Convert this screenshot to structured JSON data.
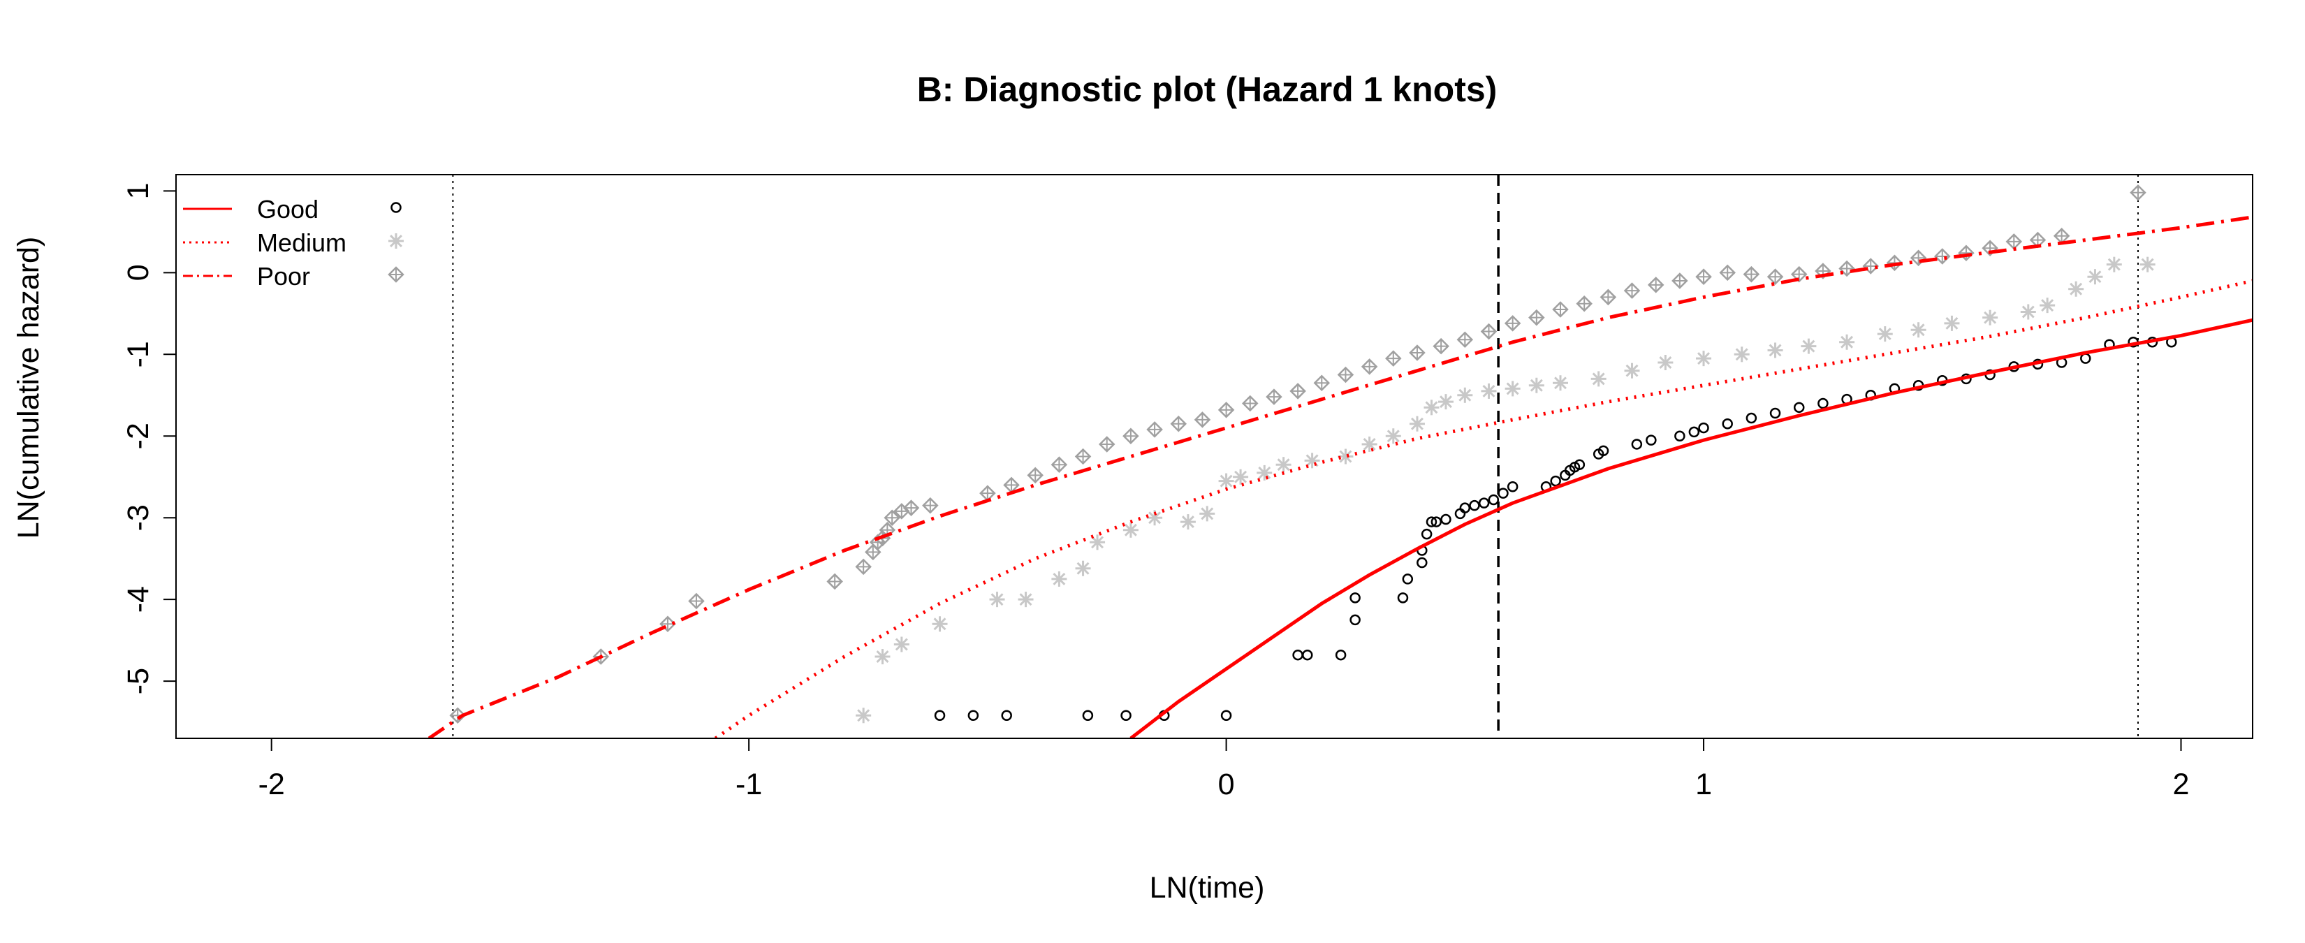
{
  "chart_data": {
    "type": "scatter",
    "title": "B: Diagnostic plot (Hazard 1 knots)",
    "xlabel": "LN(time)",
    "ylabel": "LN(cumulative hazard)",
    "xlim": [
      -2.2,
      2.15
    ],
    "ylim": [
      -5.7,
      1.2
    ],
    "x_ticks": [
      -2,
      -1,
      0,
      1,
      2
    ],
    "y_ticks": [
      -5,
      -4,
      -3,
      -2,
      -1,
      0,
      1
    ],
    "x_tick_labels": [
      "-2",
      "-1",
      "0",
      "1",
      "2"
    ],
    "y_tick_labels": [
      "-5",
      "-4",
      "-3",
      "-2",
      "-1",
      "0",
      "1"
    ],
    "grid": false,
    "legend_position": "top-left",
    "colors": {
      "curve": "#ff0000",
      "good_points": "#000000",
      "medium_points": "#c8c8c8",
      "poor_points": "#a0a0a0",
      "vline": "#000000"
    },
    "reference_lines": [
      {
        "x": -1.62,
        "style": "dotted"
      },
      {
        "x": 0.57,
        "style": "dashed"
      },
      {
        "x": 1.91,
        "style": "dotted"
      }
    ],
    "legend": [
      {
        "label": "Good",
        "line_style": "solid",
        "marker": "circle"
      },
      {
        "label": "Medium",
        "line_style": "dotted",
        "marker": "asterisk"
      },
      {
        "label": "Poor",
        "line_style": "dashdot",
        "marker": "diamond-plus"
      }
    ],
    "series": [
      {
        "name": "Good",
        "marker": "circle",
        "fitted_line": {
          "style": "solid",
          "x": [
            -0.2,
            -0.1,
            0.0,
            0.1,
            0.2,
            0.3,
            0.4,
            0.5,
            0.6,
            0.8,
            1.0,
            1.2,
            1.4,
            1.6,
            1.8,
            2.0,
            2.15
          ],
          "y": [
            -5.7,
            -5.25,
            -4.85,
            -4.45,
            -4.05,
            -3.7,
            -3.38,
            -3.08,
            -2.82,
            -2.4,
            -2.05,
            -1.75,
            -1.47,
            -1.22,
            -0.98,
            -0.77,
            -0.58
          ]
        },
        "points": {
          "x": [
            -0.6,
            -0.53,
            -0.46,
            -0.29,
            -0.21,
            -0.13,
            0.0,
            0.15,
            0.17,
            0.24,
            0.27,
            0.27,
            0.37,
            0.38,
            0.41,
            0.41,
            0.42,
            0.43,
            0.44,
            0.46,
            0.49,
            0.5,
            0.52,
            0.54,
            0.56,
            0.58,
            0.6,
            0.67,
            0.69,
            0.71,
            0.72,
            0.73,
            0.74,
            0.78,
            0.79,
            0.86,
            0.89,
            0.95,
            0.98,
            1.0,
            1.05,
            1.1,
            1.15,
            1.2,
            1.25,
            1.3,
            1.35,
            1.4,
            1.45,
            1.5,
            1.55,
            1.6,
            1.65,
            1.7,
            1.75,
            1.8,
            1.85,
            1.9,
            1.94,
            1.98
          ],
          "y": [
            -5.42,
            -5.42,
            -5.42,
            -5.42,
            -5.42,
            -5.42,
            -5.42,
            -4.68,
            -4.68,
            -4.68,
            -4.25,
            -3.98,
            -3.98,
            -3.75,
            -3.55,
            -3.4,
            -3.2,
            -3.05,
            -3.05,
            -3.02,
            -2.95,
            -2.88,
            -2.85,
            -2.82,
            -2.78,
            -2.7,
            -2.62,
            -2.62,
            -2.55,
            -2.48,
            -2.42,
            -2.38,
            -2.35,
            -2.22,
            -2.18,
            -2.1,
            -2.05,
            -2.0,
            -1.95,
            -1.9,
            -1.85,
            -1.78,
            -1.72,
            -1.65,
            -1.6,
            -1.55,
            -1.5,
            -1.42,
            -1.38,
            -1.32,
            -1.3,
            -1.25,
            -1.15,
            -1.12,
            -1.1,
            -1.05,
            -0.88,
            -0.85,
            -0.85,
            -0.85
          ]
        }
      },
      {
        "name": "Medium",
        "marker": "asterisk",
        "fitted_line": {
          "style": "dotted",
          "x": [
            -1.07,
            -1.0,
            -0.8,
            -0.6,
            -0.4,
            -0.2,
            0.0,
            0.2,
            0.4,
            0.6,
            0.8,
            1.0,
            1.2,
            1.4,
            1.6,
            1.8,
            2.0,
            2.15
          ],
          "y": [
            -5.7,
            -5.42,
            -4.7,
            -4.05,
            -3.5,
            -3.05,
            -2.65,
            -2.32,
            -2.03,
            -1.8,
            -1.58,
            -1.38,
            -1.18,
            -0.98,
            -0.78,
            -0.55,
            -0.3,
            -0.1
          ]
        },
        "points": {
          "x": [
            -0.76,
            -0.72,
            -0.68,
            -0.6,
            -0.48,
            -0.42,
            -0.35,
            -0.3,
            -0.27,
            -0.2,
            -0.15,
            -0.08,
            -0.04,
            0.0,
            0.03,
            0.08,
            0.12,
            0.18,
            0.25,
            0.3,
            0.35,
            0.4,
            0.43,
            0.46,
            0.5,
            0.55,
            0.6,
            0.65,
            0.7,
            0.78,
            0.85,
            0.92,
            1.0,
            1.08,
            1.15,
            1.22,
            1.3,
            1.38,
            1.45,
            1.52,
            1.6,
            1.68,
            1.72,
            1.78,
            1.82,
            1.86,
            1.93
          ],
          "y": [
            -5.42,
            -4.7,
            -4.55,
            -4.3,
            -4.0,
            -4.0,
            -3.75,
            -3.62,
            -3.3,
            -3.15,
            -3.0,
            -3.05,
            -2.95,
            -2.55,
            -2.5,
            -2.45,
            -2.35,
            -2.3,
            -2.25,
            -2.1,
            -2.0,
            -1.85,
            -1.65,
            -1.58,
            -1.5,
            -1.45,
            -1.42,
            -1.38,
            -1.35,
            -1.3,
            -1.2,
            -1.1,
            -1.05,
            -1.0,
            -0.95,
            -0.9,
            -0.85,
            -0.75,
            -0.7,
            -0.62,
            -0.55,
            -0.48,
            -0.4,
            -0.2,
            -0.05,
            0.1,
            0.1
          ]
        }
      },
      {
        "name": "Poor",
        "marker": "diamond-plus",
        "fitted_line": {
          "style": "dashdot",
          "x": [
            -1.67,
            -1.6,
            -1.4,
            -1.2,
            -1.0,
            -0.8,
            -0.6,
            -0.4,
            -0.2,
            0.0,
            0.2,
            0.4,
            0.6,
            0.8,
            1.0,
            1.2,
            1.4,
            1.6,
            1.8,
            2.0,
            2.15
          ],
          "y": [
            -5.7,
            -5.42,
            -4.95,
            -4.4,
            -3.88,
            -3.4,
            -2.98,
            -2.6,
            -2.25,
            -1.9,
            -1.55,
            -1.2,
            -0.85,
            -0.55,
            -0.3,
            -0.08,
            0.1,
            0.25,
            0.4,
            0.55,
            0.68
          ]
        },
        "points": {
          "x": [
            -1.61,
            -1.31,
            -1.17,
            -1.11,
            -0.82,
            -0.76,
            -0.74,
            -0.73,
            -0.72,
            -0.71,
            -0.7,
            -0.68,
            -0.66,
            -0.62,
            -0.5,
            -0.45,
            -0.4,
            -0.35,
            -0.3,
            -0.25,
            -0.2,
            -0.15,
            -0.1,
            -0.05,
            0.0,
            0.05,
            0.1,
            0.15,
            0.2,
            0.25,
            0.3,
            0.35,
            0.4,
            0.45,
            0.5,
            0.55,
            0.6,
            0.65,
            0.7,
            0.75,
            0.8,
            0.85,
            0.9,
            0.95,
            1.0,
            1.05,
            1.1,
            1.15,
            1.2,
            1.25,
            1.3,
            1.35,
            1.4,
            1.45,
            1.5,
            1.55,
            1.6,
            1.65,
            1.7,
            1.75,
            1.91
          ],
          "y": [
            -5.42,
            -4.7,
            -4.3,
            -4.02,
            -3.78,
            -3.6,
            -3.42,
            -3.3,
            -3.25,
            -3.15,
            -3.0,
            -2.92,
            -2.88,
            -2.85,
            -2.7,
            -2.6,
            -2.48,
            -2.35,
            -2.25,
            -2.1,
            -2.0,
            -1.92,
            -1.85,
            -1.8,
            -1.68,
            -1.6,
            -1.52,
            -1.45,
            -1.35,
            -1.25,
            -1.15,
            -1.05,
            -0.98,
            -0.9,
            -0.82,
            -0.72,
            -0.62,
            -0.55,
            -0.45,
            -0.38,
            -0.3,
            -0.22,
            -0.15,
            -0.1,
            -0.05,
            0.0,
            -0.02,
            -0.05,
            -0.02,
            0.02,
            0.05,
            0.08,
            0.12,
            0.18,
            0.2,
            0.24,
            0.3,
            0.38,
            0.4,
            0.45,
            0.98
          ]
        }
      }
    ]
  }
}
